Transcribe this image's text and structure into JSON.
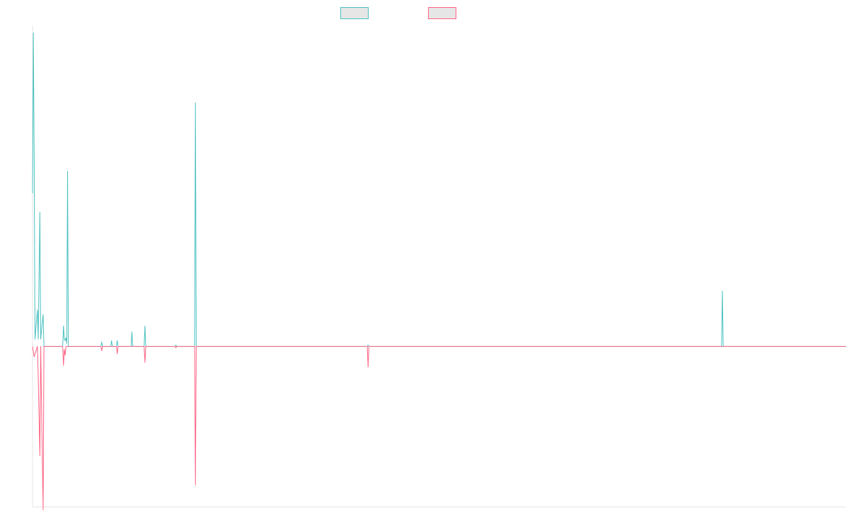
{
  "chart_data": {
    "type": "line",
    "title": "",
    "xlabel": "",
    "ylabel": "",
    "grid": false,
    "legend_position": "top-center",
    "x_count": 1000,
    "ylim": [
      -1.1,
      2.2
    ],
    "baseline": 0,
    "series": [
      {
        "color": "#4bc0c0",
        "fill": "#e6e6e6",
        "points": [
          [
            0,
            1.05
          ],
          [
            1,
            2.15
          ],
          [
            2,
            1.3
          ],
          [
            3,
            0.05
          ],
          [
            6,
            0.25
          ],
          [
            7,
            0.05
          ],
          [
            9,
            0.92
          ],
          [
            10,
            0.05
          ],
          [
            13,
            0.22
          ],
          [
            14,
            0.0
          ],
          [
            15,
            0.0
          ],
          [
            37,
            0.0
          ],
          [
            38,
            0.14
          ],
          [
            39,
            0.05
          ],
          [
            40,
            0.04
          ],
          [
            41,
            0.06
          ],
          [
            42,
            0.02
          ],
          [
            43,
            1.2
          ],
          [
            44,
            0.0
          ],
          [
            45,
            0.0
          ],
          [
            84,
            0.0
          ],
          [
            85,
            0.03
          ],
          [
            86,
            0.0
          ],
          [
            96,
            0.0
          ],
          [
            97,
            0.04
          ],
          [
            98,
            0.0
          ],
          [
            103,
            0.0
          ],
          [
            104,
            0.04
          ],
          [
            105,
            0.0
          ],
          [
            121,
            0.0
          ],
          [
            122,
            0.1
          ],
          [
            123,
            0.0
          ],
          [
            137,
            0.0
          ],
          [
            138,
            0.14
          ],
          [
            139,
            0.0
          ],
          [
            175,
            0.0
          ],
          [
            176,
            0.01
          ],
          [
            177,
            0.0
          ],
          [
            199,
            0.0
          ],
          [
            200,
            1.67
          ],
          [
            201,
            0.0
          ],
          [
            411,
            0.0
          ],
          [
            412,
            0.01
          ],
          [
            413,
            0.0
          ],
          [
            846,
            0.0
          ],
          [
            847,
            0.38
          ],
          [
            848,
            0.0
          ],
          [
            999,
            0.0
          ]
        ]
      },
      {
        "color": "#ff6384",
        "fill": "#e6e6e6",
        "points": [
          [
            0,
            0.0
          ],
          [
            2,
            -0.07
          ],
          [
            6,
            0.0
          ],
          [
            7,
            -0.22
          ],
          [
            9,
            -0.75
          ],
          [
            10,
            0.0
          ],
          [
            13,
            -1.12
          ],
          [
            14,
            0.0
          ],
          [
            37,
            0.0
          ],
          [
            38,
            -0.13
          ],
          [
            39,
            -0.02
          ],
          [
            40,
            -0.06
          ],
          [
            41,
            0.0
          ],
          [
            84,
            0.0
          ],
          [
            85,
            -0.03
          ],
          [
            86,
            0.0
          ],
          [
            103,
            0.0
          ],
          [
            104,
            -0.05
          ],
          [
            105,
            0.0
          ],
          [
            137,
            0.0
          ],
          [
            138,
            -0.11
          ],
          [
            139,
            0.0
          ],
          [
            175,
            0.0
          ],
          [
            176,
            -0.01
          ],
          [
            177,
            0.0
          ],
          [
            199,
            0.0
          ],
          [
            200,
            -0.95
          ],
          [
            201,
            0.0
          ],
          [
            411,
            0.0
          ],
          [
            412,
            -0.14
          ],
          [
            413,
            0.0
          ],
          [
            999,
            0.0
          ]
        ]
      }
    ]
  }
}
